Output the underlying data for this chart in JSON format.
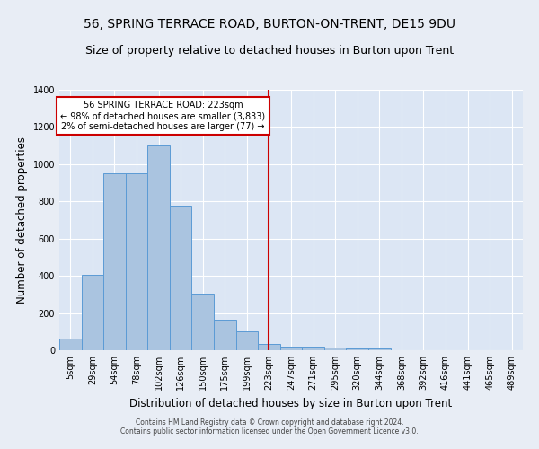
{
  "title": "56, SPRING TERRACE ROAD, BURTON-ON-TRENT, DE15 9DU",
  "subtitle": "Size of property relative to detached houses in Burton upon Trent",
  "xlabel": "Distribution of detached houses by size in Burton upon Trent",
  "ylabel": "Number of detached properties",
  "footnote1": "Contains HM Land Registry data © Crown copyright and database right 2024.",
  "footnote2": "Contains public sector information licensed under the Open Government Licence v3.0.",
  "bar_labels": [
    "5sqm",
    "29sqm",
    "54sqm",
    "78sqm",
    "102sqm",
    "126sqm",
    "150sqm",
    "175sqm",
    "199sqm",
    "223sqm",
    "247sqm",
    "271sqm",
    "295sqm",
    "320sqm",
    "344sqm",
    "368sqm",
    "392sqm",
    "416sqm",
    "441sqm",
    "465sqm",
    "489sqm"
  ],
  "bar_heights": [
    65,
    405,
    950,
    950,
    1100,
    775,
    305,
    165,
    100,
    35,
    20,
    18,
    15,
    10,
    8,
    0,
    0,
    0,
    0,
    0,
    0
  ],
  "bar_color": "#aac4e0",
  "bar_edgecolor": "#5b9bd5",
  "vline_x": 9,
  "vline_color": "#cc0000",
  "annotation_text": "56 SPRING TERRACE ROAD: 223sqm\n← 98% of detached houses are smaller (3,833)\n2% of semi-detached houses are larger (77) →",
  "annotation_box_color": "#cc0000",
  "ylim": [
    0,
    1400
  ],
  "yticks": [
    0,
    200,
    400,
    600,
    800,
    1000,
    1200,
    1400
  ],
  "bg_color": "#e8edf5",
  "plot_bg_color": "#dce6f4",
  "title_fontsize": 10,
  "xlabel_fontsize": 8.5,
  "ylabel_fontsize": 8.5,
  "tick_fontsize": 7
}
